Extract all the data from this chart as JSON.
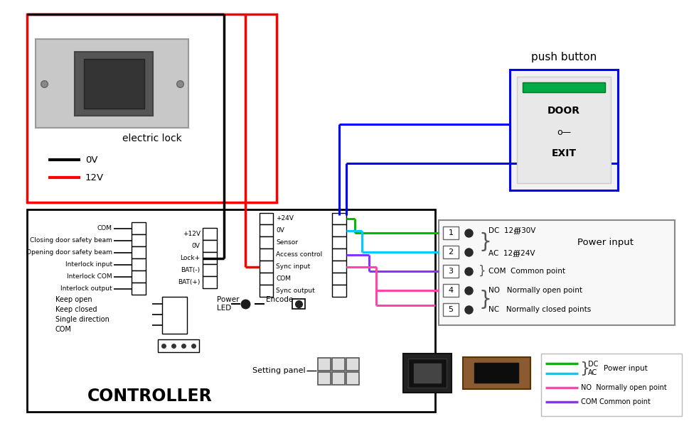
{
  "bg_color": "#ffffff",
  "controller_label": "CONTROLLER",
  "left_connector_labels": [
    "COM",
    "Closing door safety beam",
    "Opening door safety beam",
    "Interlock input",
    "Interlock COM",
    "Interlock output"
  ],
  "mid_connector_labels": [
    "+12V",
    "0V",
    "Lock+",
    "BAT(-)",
    "BAT(+)"
  ],
  "right_connector_labels": [
    "+24V",
    "0V",
    "Sensor",
    "Access control",
    "Sync input",
    "COM",
    "Sync output"
  ],
  "terminal_labels": [
    "1",
    "2",
    "3",
    "4",
    "5"
  ],
  "terminal_desc_top": [
    "DC  12∰30V",
    "AC  12∰24V"
  ],
  "terminal_desc": [
    "COM  Common point",
    "NO   Normally open point",
    "NC   Normally closed points"
  ],
  "power_input_label": "Power input",
  "electric_lock_label": "electric lock",
  "lock_legend": [
    {
      "color": "#000000",
      "label": "0V"
    },
    {
      "color": "#ff0000",
      "label": "12V"
    }
  ],
  "push_button_label": "push button",
  "setting_panel_label": "Setting panel",
  "keep_labels": [
    "Keep open",
    "Keep closed",
    "Single direction",
    "COM"
  ],
  "power_label": "Power",
  "led_label": "LED",
  "encode_label": "Encode",
  "wire_black": "#000000",
  "wire_red": "#ff0000",
  "wire_green": "#00bb00",
  "wire_cyan": "#00ccff",
  "wire_pink": "#ff44aa",
  "wire_purple": "#8833ff",
  "wire_blue": "#0000ff",
  "legend_lines": [
    {
      "color": "#00bb00",
      "text": "DC"
    },
    {
      "color": "#00ccff",
      "text": "AC"
    },
    {
      "color": "#ff44aa",
      "text": "NO  Normally open point"
    },
    {
      "color": "#8833ff",
      "text": "COM Common point"
    }
  ]
}
